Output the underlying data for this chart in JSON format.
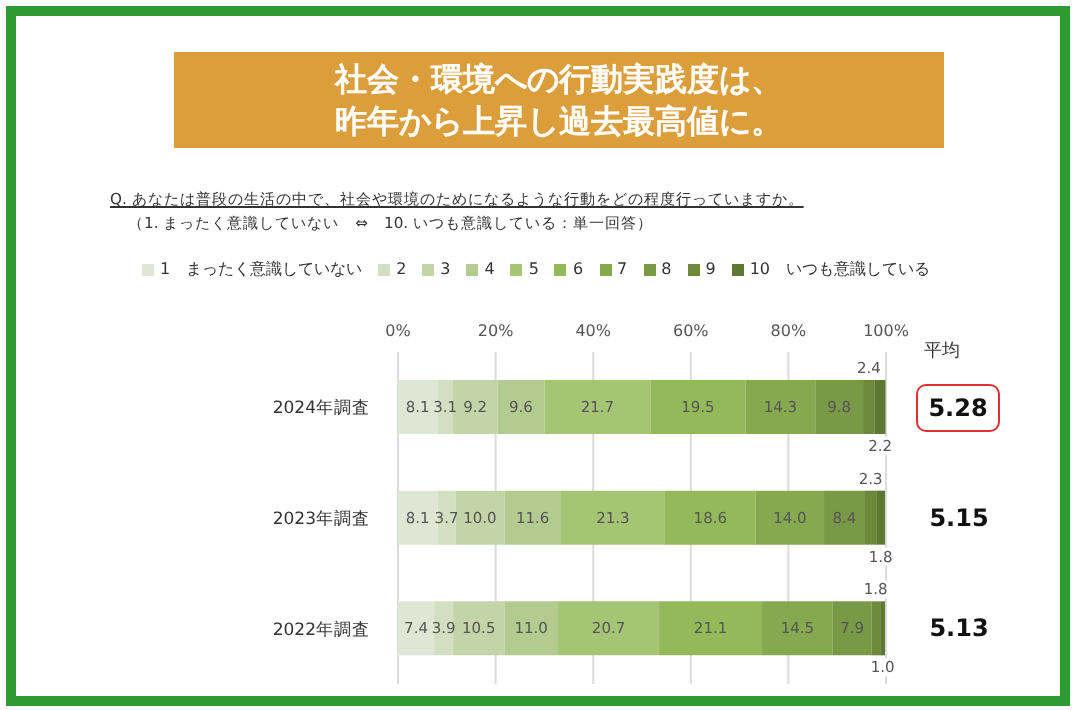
{
  "chart_data": {
    "type": "bar",
    "orientation": "horizontal",
    "stacked": true,
    "title": "社会・環境への行動実践度は、昨年から上昇し過去最高値に。",
    "subtitle": "Q. あなたは普段の生活の中で、社会や環境のためになるような行動をどの程度行っていますか。",
    "annotations": [
      "（1. まったく意識していない　⇔　10. いつも意識している：単一回答）",
      "平均",
      "5.28",
      "5.15",
      "5.13"
    ],
    "categories": [
      "2024年調査",
      "2023年調査",
      "2022年調査"
    ],
    "xlim": [
      0,
      100
    ],
    "xticks": [
      {
        "value": 0,
        "label": "0%"
      },
      {
        "value": 20,
        "label": "20%"
      },
      {
        "value": 40,
        "label": "40%"
      },
      {
        "value": 60,
        "label": "60%"
      },
      {
        "value": 80,
        "label": "80%"
      },
      {
        "value": 100,
        "label": "100%"
      }
    ],
    "grid": "x",
    "legend": "top",
    "series": [
      {
        "name": "1　まったく意識していない",
        "color": "#dfe6d3",
        "values": [
          8.1,
          8.1,
          7.4
        ],
        "value_labels": [
          "8.1",
          "8.1",
          "7.4"
        ]
      },
      {
        "name": "2",
        "color": "#d2dfc0",
        "values": [
          3.1,
          3.7,
          3.9
        ],
        "value_labels": [
          "3.1",
          "3.7",
          "3.9"
        ]
      },
      {
        "name": "3",
        "color": "#c3d4a7",
        "values": [
          9.2,
          10.0,
          10.5
        ],
        "value_labels": [
          "9.2",
          "10.0",
          "10.5"
        ]
      },
      {
        "name": "4",
        "color": "#b3cb8f",
        "values": [
          9.6,
          11.6,
          11.0
        ],
        "value_labels": [
          "9.6",
          "11.6",
          "11.0"
        ]
      },
      {
        "name": "5",
        "color": "#a5c574",
        "values": [
          21.7,
          21.3,
          20.7
        ],
        "value_labels": [
          "21.7",
          "21.3",
          "20.7"
        ]
      },
      {
        "name": "6",
        "color": "#94b95a",
        "values": [
          19.5,
          18.6,
          21.1
        ],
        "value_labels": [
          "19.5",
          "18.6",
          "21.1"
        ]
      },
      {
        "name": "7",
        "color": "#86a94f",
        "values": [
          14.3,
          14.0,
          14.5
        ],
        "value_labels": [
          "14.3",
          "14.0",
          "14.5"
        ]
      },
      {
        "name": "8",
        "color": "#7a9947",
        "values": [
          9.8,
          8.4,
          7.9
        ],
        "value_labels": [
          "9.8",
          "8.4",
          "7.9"
        ]
      },
      {
        "name": "9",
        "color": "#6d8a3c",
        "values": [
          2.4,
          2.3,
          1.8
        ],
        "value_labels": [
          "2.4",
          "2.3",
          "1.8"
        ]
      },
      {
        "name": "10　いつも意識している",
        "color": "#5d7830",
        "values": [
          2.2,
          1.8,
          1.0
        ],
        "value_labels": [
          "2.2",
          "1.8",
          "1.0"
        ]
      }
    ]
  }
}
